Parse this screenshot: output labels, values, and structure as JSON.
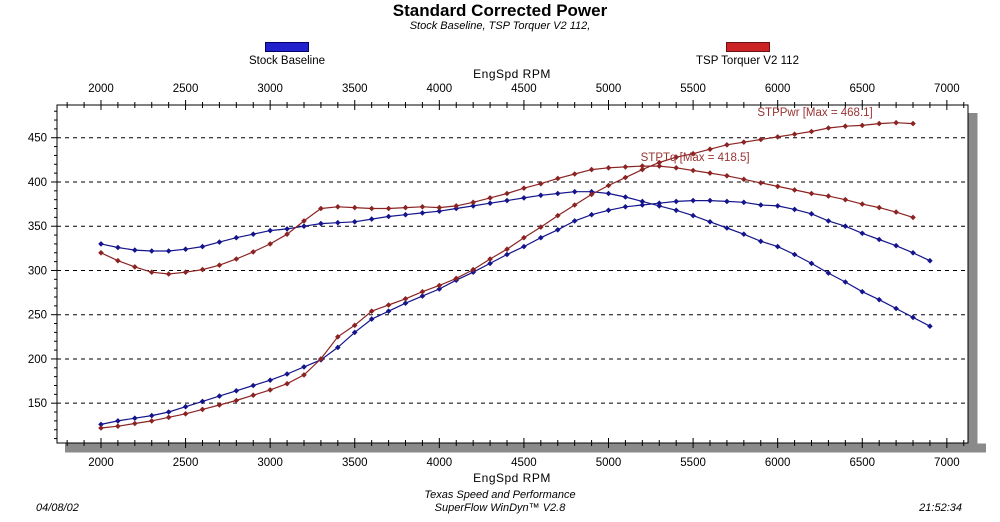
{
  "page": {
    "title": "Standard Corrected Power",
    "subtitle": "Stock Baseline, TSP Torquer V2 112,",
    "footer_line1": "Texas Speed and Performance",
    "footer_line2": "SuperFlow WinDyn™ V2.8",
    "date": "04/08/02",
    "time": "21:52:34"
  },
  "legend": {
    "items": [
      {
        "label": "Stock Baseline",
        "fill": "#2222cc",
        "border": "#00006a"
      },
      {
        "label": "TSP Torquer V2 112",
        "fill": "#cc2424",
        "border": "#6a1010"
      }
    ]
  },
  "chart_data": {
    "type": "line",
    "title": "Standard Corrected Power",
    "xlabel": "EngSpd  RPM",
    "ylabel": "",
    "grid": "horizontal-dashed",
    "x_axis": {
      "label": "EngSpd  RPM",
      "min": 1740,
      "max": 7125,
      "minor_step": 100,
      "tick_labels": [
        2000,
        2500,
        3000,
        3500,
        4000,
        4500,
        5000,
        5500,
        6000,
        6500,
        7000
      ]
    },
    "y_axis": {
      "min": 105,
      "max": 487,
      "minor_step": 10,
      "gridlines": [
        150,
        200,
        250,
        300,
        350,
        400,
        450
      ]
    },
    "rpm_start": 2000,
    "rpm_step": 100,
    "series": [
      {
        "name": "Stock Baseline STPTq",
        "run": "Stock Baseline",
        "channel": "STPTq",
        "color": "#14148c",
        "values": [
          330,
          326,
          323,
          322,
          322,
          324,
          327,
          332,
          337,
          341,
          345,
          347,
          350,
          353,
          354,
          355,
          358,
          361,
          363,
          365,
          367,
          370,
          373,
          376,
          379,
          382,
          385,
          387,
          389,
          389,
          387,
          383,
          378,
          373,
          368,
          362,
          355,
          348,
          341,
          333,
          327,
          318,
          308,
          297,
          287,
          276,
          267,
          257,
          247,
          237
        ]
      },
      {
        "name": "Stock Baseline STPPwr",
        "run": "Stock Baseline",
        "channel": "STPPwr",
        "color": "#14148c",
        "values": [
          126,
          130,
          133,
          136,
          140,
          146,
          152,
          158,
          164,
          170,
          176,
          183,
          191,
          199,
          213,
          230,
          245,
          254,
          263,
          271,
          279,
          289,
          298,
          308,
          318,
          327,
          337,
          346,
          356,
          363,
          368,
          372,
          374,
          376,
          378,
          379,
          379,
          378,
          377,
          374,
          373,
          369,
          364,
          356,
          350,
          342,
          335,
          328,
          320,
          311
        ]
      },
      {
        "name": "TSP Torquer V2 112 STPTq",
        "run": "TSP Torquer V2 112",
        "channel": "STPTq",
        "color": "#8c2323",
        "values": [
          320,
          311,
          304,
          298,
          296,
          298,
          301,
          306,
          313,
          321,
          330,
          341,
          356,
          370,
          372,
          371,
          370,
          370,
          371,
          372,
          371,
          373,
          377,
          382,
          387,
          393,
          398,
          404,
          409,
          414,
          416,
          417,
          418,
          418,
          416,
          413,
          410,
          407,
          403,
          399,
          395,
          391,
          387,
          384,
          380,
          375,
          371,
          366,
          360
        ]
      },
      {
        "name": "TSP Torquer V2 112 STPPwr",
        "run": "TSP Torquer V2 112",
        "channel": "STPPwr",
        "color": "#8c2323",
        "values": [
          122,
          124,
          127,
          130,
          134,
          138,
          143,
          148,
          153,
          159,
          165,
          172,
          182,
          200,
          225,
          238,
          254,
          261,
          268,
          276,
          283,
          291,
          301,
          313,
          324,
          337,
          349,
          362,
          374,
          386,
          396,
          405,
          414,
          422,
          428,
          432,
          437,
          442,
          445,
          448,
          451,
          454,
          457,
          461,
          463,
          464,
          466,
          467,
          466
        ]
      }
    ],
    "max_labels": {
      "stppwr_max": "468.1",
      "stptq_max": "418.5"
    },
    "annotations": [
      {
        "text": "STPPwr [Max = 468.1]",
        "rpm": 5880,
        "value": 479,
        "color": "#993333"
      },
      {
        "text": "STPTq [Max = 418.5]",
        "rpm": 5190,
        "value": 428,
        "color": "#993333"
      }
    ]
  }
}
